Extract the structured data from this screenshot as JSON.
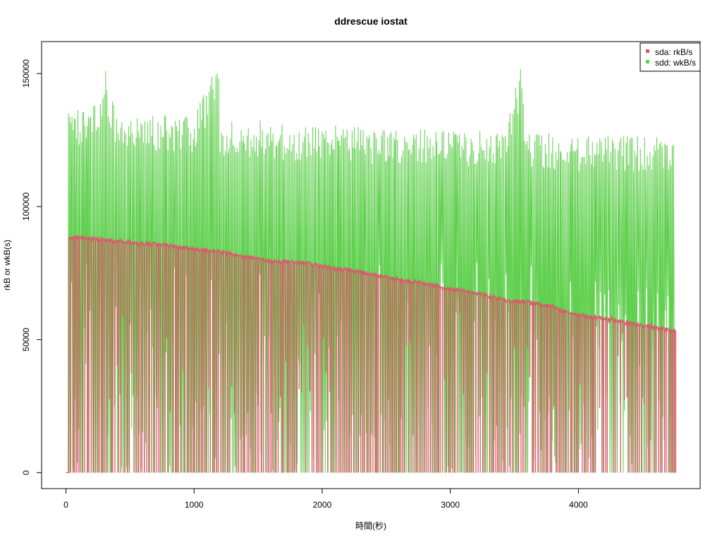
{
  "chart_data": {
    "type": "line",
    "title": "ddrescue iostat",
    "xlabel": "時間(秒)",
    "ylabel": "rkB or wkB(s)",
    "xlim": [
      -190,
      4950
    ],
    "ylim": [
      -6000,
      162000
    ],
    "x_ticks": [
      0,
      1000,
      2000,
      3000,
      4000
    ],
    "x_tick_labels": [
      "0",
      "1000",
      "2000",
      "3000",
      "4000"
    ],
    "y_ticks": [
      0,
      50000,
      100000,
      150000
    ],
    "y_tick_labels": [
      "0",
      "50000",
      "100000",
      "150000"
    ],
    "grid": false,
    "legend_position": "top-right",
    "series": [
      {
        "name": "sda: rkB/s",
        "color": "#DF536B",
        "pattern": "near-constant read rate with frequent brief drops to 0",
        "x": [
          0,
          20,
          200,
          400,
          600,
          800,
          1000,
          1200,
          1400,
          1600,
          1800,
          2000,
          2200,
          2400,
          2600,
          2800,
          3000,
          3200,
          3400,
          3600,
          3800,
          4000,
          4200,
          4400,
          4600,
          4750
        ],
        "values": [
          0,
          88500,
          88000,
          87000,
          86000,
          85500,
          84000,
          83000,
          81000,
          79500,
          79000,
          77500,
          76000,
          74500,
          72500,
          71000,
          69000,
          67500,
          65000,
          64000,
          62000,
          59000,
          58000,
          56000,
          54500,
          53000
        ]
      },
      {
        "name": "sdd: wkB/s",
        "color": "#61D04F",
        "pattern": "burst writes oscillating between 0 and the peak values",
        "x": [
          0,
          20,
          100,
          200,
          310,
          400,
          600,
          800,
          1000,
          1190,
          1200,
          1400,
          1600,
          1800,
          2000,
          2200,
          2400,
          2600,
          2800,
          3000,
          3200,
          3400,
          3550,
          3600,
          3800,
          4000,
          4200,
          4400,
          4600,
          4750
        ],
        "values": [
          0,
          135000,
          138000,
          137000,
          151000,
          136000,
          136000,
          136000,
          135000,
          155500,
          134000,
          134000,
          133000,
          132000,
          132000,
          131000,
          131000,
          130000,
          130000,
          130000,
          130000,
          129000,
          152000,
          129000,
          129000,
          128000,
          128000,
          128000,
          128000,
          126000
        ]
      }
    ]
  }
}
